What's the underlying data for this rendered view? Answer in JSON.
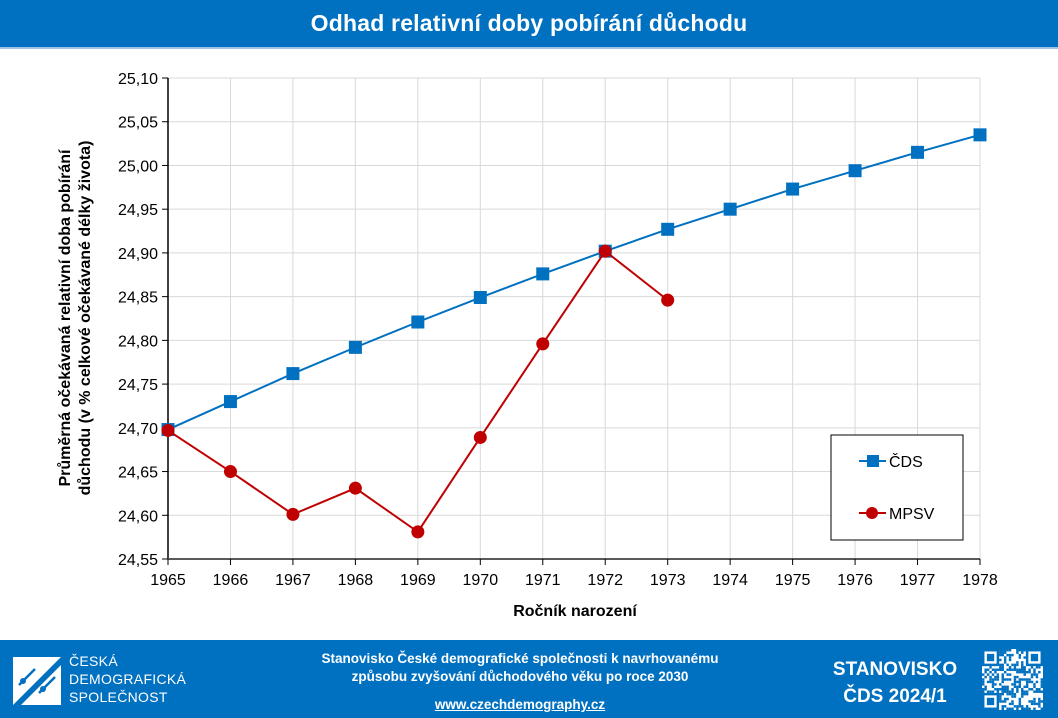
{
  "header": {
    "title": "Odhad relativní doby pobírání důchodu"
  },
  "chart_data": {
    "type": "line",
    "title": "Odhad relativní doby pobírání důchodu",
    "xlabel": "Ročník narození",
    "ylabel_lines": [
      "Průměrná očekávaná relativní doba pobírání",
      "důchodu (v % celkové očekávané délky života)"
    ],
    "x": [
      1965,
      1966,
      1967,
      1968,
      1969,
      1970,
      1971,
      1972,
      1973,
      1974,
      1975,
      1976,
      1977,
      1978
    ],
    "x_tick_labels": [
      "1965",
      "1966",
      "1967",
      "1968",
      "1969",
      "1970",
      "1971",
      "1972",
      "1973",
      "1974",
      "1975",
      "1976",
      "1977",
      "1978"
    ],
    "ylim": [
      24.55,
      25.1
    ],
    "y_ticks": [
      24.55,
      24.6,
      24.65,
      24.7,
      24.75,
      24.8,
      24.85,
      24.9,
      24.95,
      25.0,
      25.05,
      25.1
    ],
    "y_tick_labels": [
      "24,55",
      "24,60",
      "24,65",
      "24,70",
      "24,75",
      "24,80",
      "24,85",
      "24,90",
      "24,95",
      "25,00",
      "25,05",
      "25,10"
    ],
    "grid": true,
    "legend_position": "bottom-right",
    "series": [
      {
        "name": "ČDS",
        "color": "#0070c0",
        "marker": "square",
        "values": [
          24.698,
          24.73,
          24.762,
          24.792,
          24.821,
          24.849,
          24.876,
          24.902,
          24.927,
          24.95,
          24.973,
          24.994,
          25.015,
          25.035
        ]
      },
      {
        "name": "MPSV",
        "color": "#c00000",
        "marker": "circle",
        "values": [
          24.697,
          24.65,
          24.601,
          24.631,
          24.581,
          24.689,
          24.796,
          24.902,
          24.846,
          null,
          null,
          null,
          null,
          null
        ]
      }
    ]
  },
  "footer": {
    "logo_lines": [
      "ČESKÁ",
      "DEMOGRAFICKÁ",
      "SPOLEČNOST"
    ],
    "statement_lines": [
      "Stanovisko České demografické společnosti k navrhovanému",
      "způsobu zvyšování důchodového věku po roce 2030"
    ],
    "link": "www.czechdemography.cz",
    "badge_lines": [
      "STANOVISKO",
      "ČDS 2024/1"
    ],
    "qr_icon": "qr-code-icon"
  }
}
